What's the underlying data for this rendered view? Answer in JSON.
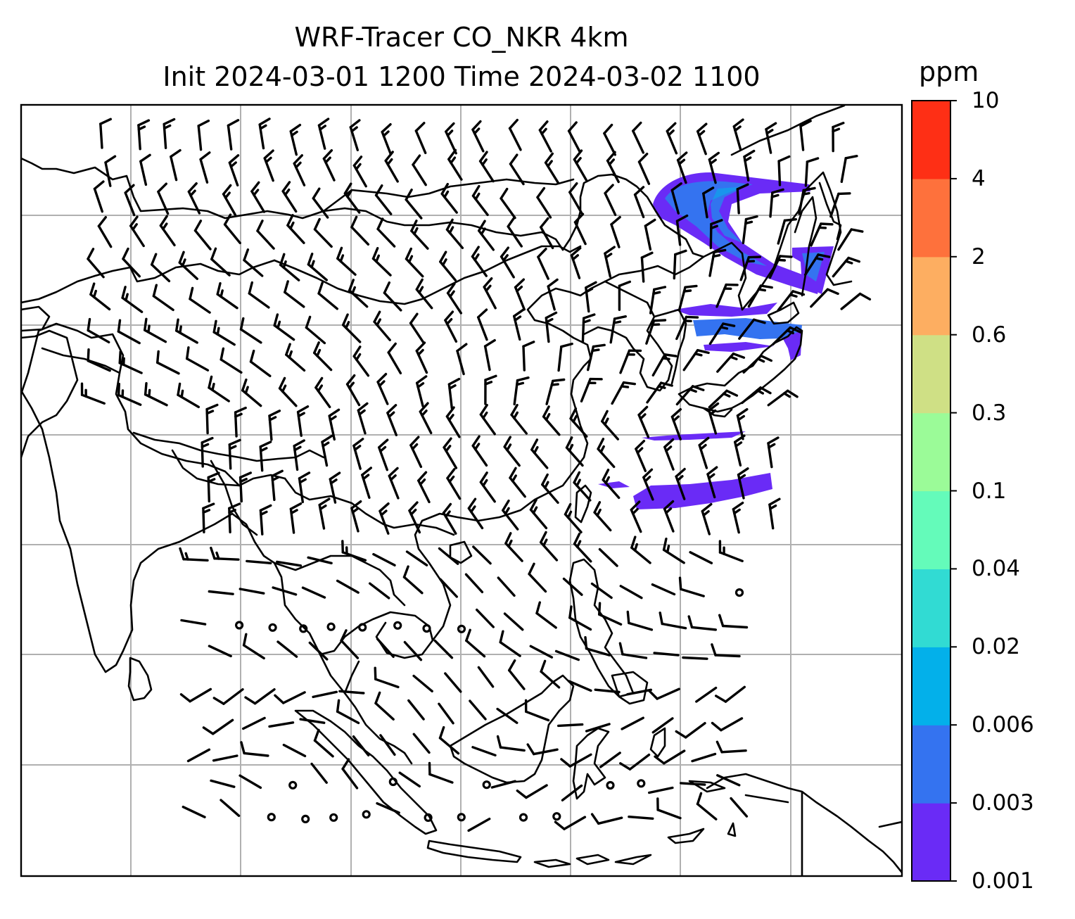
{
  "figure": {
    "title_line1": "WRF-Tracer CO_NKR 4km",
    "title_line2": "Init 2024-03-01 1200 Time 2024-03-02 1100"
  },
  "colorbar": {
    "unit": "ppm",
    "levels": [
      "0.001",
      "0.003",
      "0.006",
      "0.02",
      "0.04",
      "0.1",
      "0.3",
      "0.6",
      "2",
      "4",
      "10"
    ],
    "colors": [
      "#6A2BF6",
      "#3473F0",
      "#03B0EA",
      "#31DBD3",
      "#64FBBA",
      "#9BFB98",
      "#CFE085",
      "#FDAE61",
      "#FE713C",
      "#FE2F15"
    ]
  },
  "map": {
    "type": "wind-barbs-with-tracer-concentration",
    "gridlines": true,
    "plume_colors": [
      "#6A2BF6",
      "#3473F0",
      "#03B0EA"
    ],
    "line_color": "#000000",
    "grid_color": "#b0b0b0"
  }
}
